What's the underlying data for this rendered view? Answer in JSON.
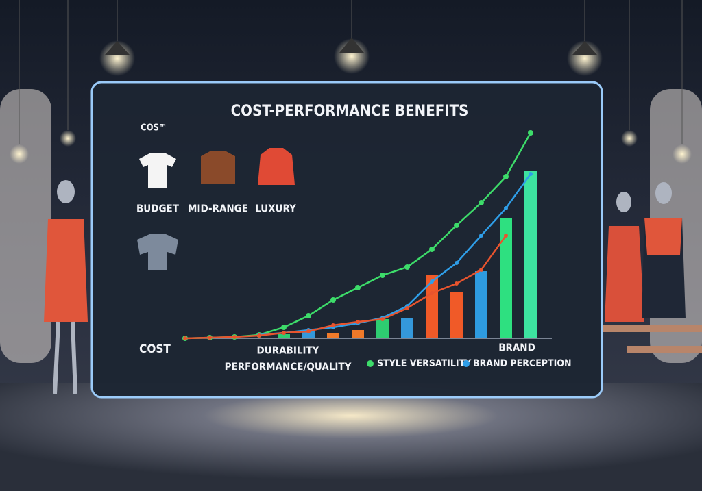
{
  "chart_data": {
    "type": "bar",
    "title": "COST-PERFORMANCE BENEFITS",
    "corner_label": "COS™",
    "tiers": [
      "BUDGET",
      "MID-RANGE",
      "LUXURY"
    ],
    "y_label": "COST",
    "x_labels": [
      "DURABILITY",
      "PERFORMANCE/QUALITY"
    ],
    "end_label": "BRAND",
    "categories": [
      null,
      null,
      null,
      null,
      null,
      null,
      null,
      null,
      null,
      null,
      null,
      null,
      null,
      null,
      null
    ],
    "ylim": [
      0,
      320
    ],
    "bars": {
      "values": [
        null,
        null,
        null,
        null,
        6,
        10,
        8,
        12,
        28,
        30,
        92,
        68,
        98,
        176,
        245
      ],
      "colors": [
        null,
        null,
        null,
        null,
        "#2ecc71",
        "#3498db",
        "#f07a2a",
        "#f07a2a",
        "#2ecc71",
        "#3498db",
        "#f05a28",
        "#f05a28",
        "#2e9be0",
        "#2ee080",
        "#3de3a0"
      ]
    },
    "series": [
      {
        "name": "STYLE VERSATILITY",
        "color": "#3ddc6a",
        "values": [
          0,
          1,
          2,
          5,
          16,
          33,
          56,
          74,
          92,
          104,
          130,
          165,
          198,
          236,
          300
        ]
      },
      {
        "name": "BRAND PERCEPTION",
        "color": "#2f9ee8",
        "values": [
          null,
          null,
          null,
          5,
          8,
          12,
          16,
          22,
          30,
          47,
          83,
          110,
          150,
          190,
          240
        ]
      },
      {
        "color": "#e8542e",
        "values": [
          0,
          1,
          2,
          4,
          8,
          10,
          19,
          24,
          28,
          44,
          66,
          80,
          100,
          150,
          null
        ]
      }
    ]
  }
}
